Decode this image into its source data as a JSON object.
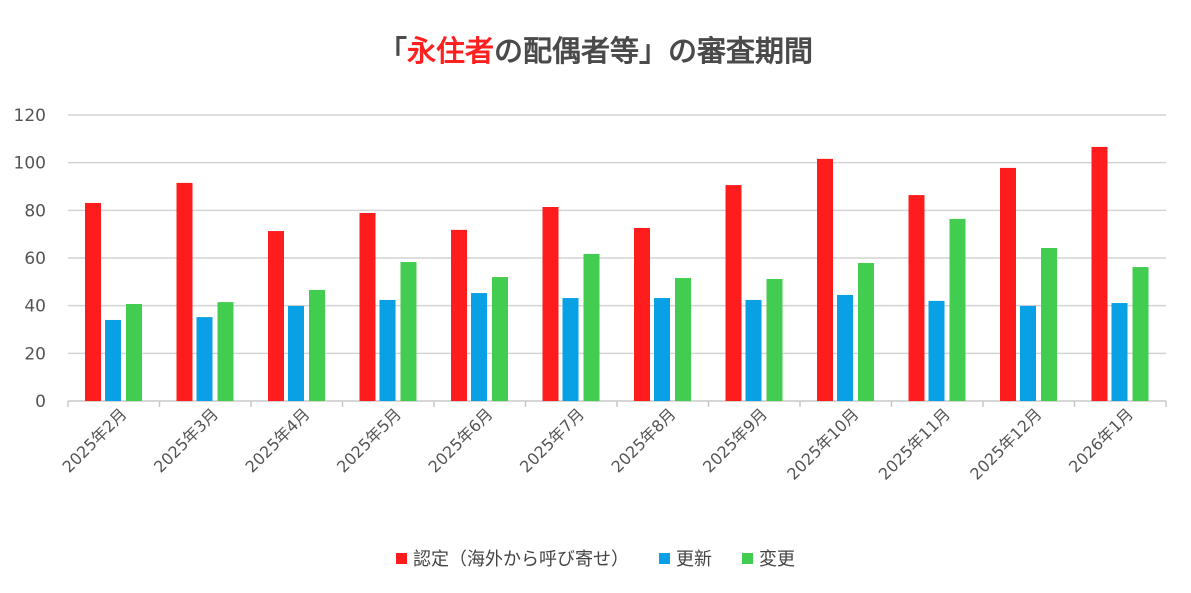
{
  "chart_data": {
    "type": "bar",
    "title_parts": [
      "「",
      "永住者",
      "の配偶者等」の審査期間"
    ],
    "title_colors": [
      "#4a4a4a",
      "#ff2020",
      "#4a4a4a"
    ],
    "categories": [
      "2025年2月",
      "2025年3月",
      "2025年4月",
      "2025年5月",
      "2025年6月",
      "2025年7月",
      "2025年8月",
      "2025年9月",
      "2025年10月",
      "2025年11月",
      "2025年12月",
      "2026年1月"
    ],
    "series": [
      {
        "name": "認定（海外から呼び寄せ）",
        "color": "#ff1c1c",
        "values": [
          83.1,
          91.5,
          71.3,
          78.9,
          71.8,
          81.4,
          72.6,
          90.6,
          101.6,
          86.4,
          97.8,
          106.6
        ]
      },
      {
        "name": "更新",
        "color": "#09a0e6",
        "values": [
          34.0,
          35.2,
          39.9,
          42.4,
          45.3,
          43.2,
          43.2,
          42.4,
          44.5,
          42.0,
          39.9,
          41.1
        ]
      },
      {
        "name": "変更",
        "color": "#43cd50",
        "values": [
          40.7,
          41.5,
          46.6,
          58.3,
          52.0,
          61.7,
          51.6,
          51.2,
          57.9,
          76.4,
          64.2,
          56.2
        ]
      }
    ],
    "ylim": [
      0,
      120
    ],
    "yticks": [
      "0",
      "20",
      "40",
      "60",
      "80",
      "100",
      "120"
    ],
    "grid": true,
    "legend_position": "bottom"
  }
}
